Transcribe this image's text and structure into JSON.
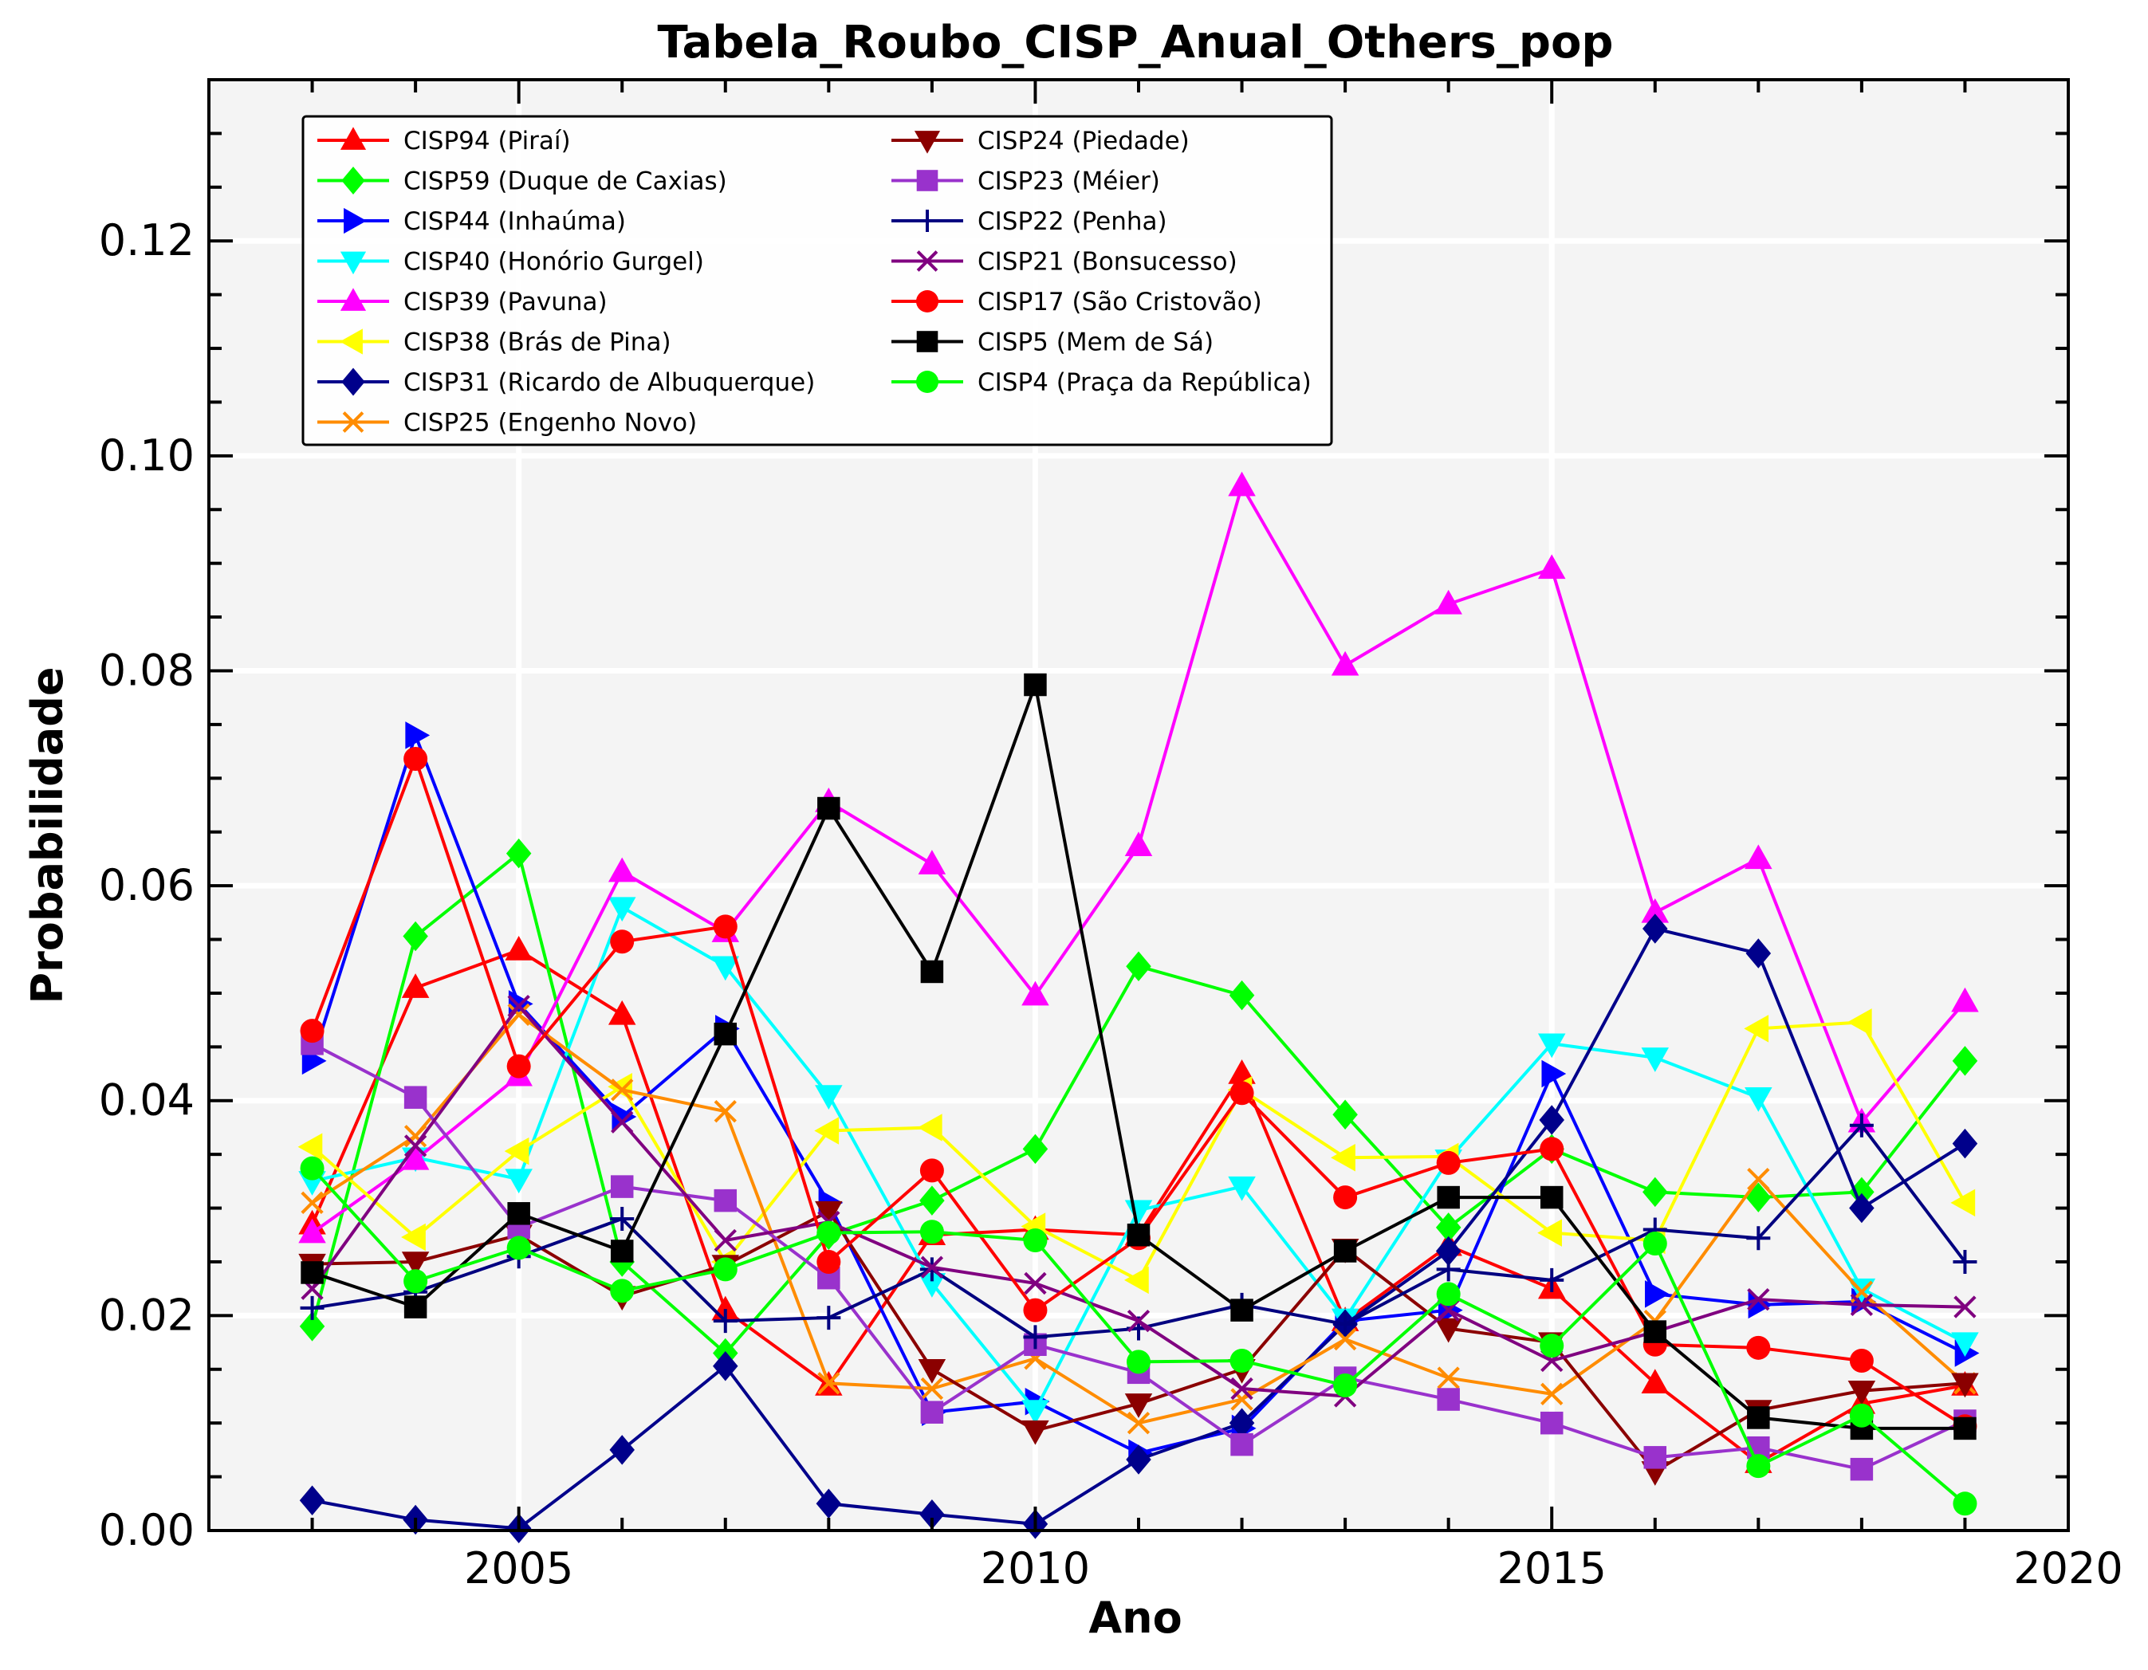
{
  "chart_data": {
    "type": "line",
    "title": "Tabela_Roubo_CISP_Anual_Others_pop",
    "xlabel": "Ano",
    "ylabel": "Probabilidade",
    "xlim": [
      2002,
      2020
    ],
    "ylim": [
      0,
      0.135
    ],
    "x_ticks": [
      2005,
      2010,
      2015,
      2020
    ],
    "x_tick_labels": [
      "2005",
      "2010",
      "2015",
      "2020"
    ],
    "y_ticks": [
      0,
      0.02,
      0.04,
      0.06,
      0.08,
      0.1,
      0.12
    ],
    "y_tick_labels": [
      "0.00",
      "0.02",
      "0.04",
      "0.06",
      "0.08",
      "0.10",
      "0.12"
    ],
    "grid": true,
    "background": "#f4f4f4",
    "legend_position": "top-left",
    "x": [
      2003,
      2004,
      2005,
      2006,
      2007,
      2008,
      2009,
      2010,
      2011,
      2012,
      2013,
      2014,
      2015,
      2016,
      2017,
      2018,
      2019
    ],
    "series": [
      {
        "name": "CISP94 (Piraí)",
        "color": "#ff0000",
        "marker": "triangle-up",
        "values": [
          0.0285,
          0.0505,
          0.054,
          0.048,
          0.0205,
          0.0135,
          0.0275,
          0.028,
          0.0275,
          0.0425,
          0.0195,
          0.0265,
          0.0225,
          0.0137,
          0.0063,
          0.0118,
          0.0135
        ]
      },
      {
        "name": "CISP59 (Duque de Caxias)",
        "color": "#00ff00",
        "marker": "diamond",
        "values": [
          0.019,
          0.0553,
          0.063,
          0.025,
          0.0165,
          0.0275,
          0.0307,
          0.0355,
          0.0525,
          0.0498,
          0.0387,
          0.0282,
          0.0355,
          0.0315,
          0.031,
          0.0315,
          0.0437
        ]
      },
      {
        "name": "CISP44 (Inhaúma)",
        "color": "#0000ff",
        "marker": "triangle-right",
        "values": [
          0.0437,
          0.074,
          0.049,
          0.0385,
          0.0467,
          0.0305,
          0.011,
          0.012,
          0.0072,
          0.0095,
          0.0195,
          0.0205,
          0.0425,
          0.022,
          0.021,
          0.0213,
          0.0165
        ]
      },
      {
        "name": "CISP40 (Honório Gurgel)",
        "color": "#00ffff",
        "marker": "triangle-down",
        "values": [
          0.0325,
          0.0347,
          0.0327,
          0.058,
          0.0525,
          0.0405,
          0.023,
          0.0112,
          0.0298,
          0.032,
          0.0197,
          0.0345,
          0.0453,
          0.044,
          0.0403,
          0.0225,
          0.0175
        ]
      },
      {
        "name": "CISP39 (Pavuna)",
        "color": "#ff00ff",
        "marker": "triangle-up",
        "values": [
          0.0277,
          0.0345,
          0.0423,
          0.0613,
          0.0557,
          0.0678,
          0.062,
          0.0498,
          0.0637,
          0.0972,
          0.0805,
          0.0862,
          0.0895,
          0.0575,
          0.0625,
          0.038,
          0.0492
        ]
      },
      {
        "name": "CISP38 (Brás de Pina)",
        "color": "#ffff00",
        "marker": "triangle-left",
        "values": [
          0.0357,
          0.0273,
          0.0353,
          0.0413,
          0.025,
          0.0372,
          0.0375,
          0.0283,
          0.0233,
          0.041,
          0.0347,
          0.0348,
          0.0277,
          0.027,
          0.0467,
          0.0473,
          0.0305
        ]
      },
      {
        "name": "CISP31 (Ricardo de Albuquerque)",
        "color": "#00008b",
        "marker": "diamond",
        "values": [
          0.0028,
          0.001,
          0.0002,
          0.0075,
          0.0153,
          0.0025,
          0.0015,
          0.0006,
          0.0066,
          0.01,
          0.0192,
          0.026,
          0.0382,
          0.056,
          0.0537,
          0.03,
          0.036
        ]
      },
      {
        "name": "CISP25 (Engenho Novo)",
        "color": "#ff8c00",
        "marker": "x",
        "values": [
          0.0305,
          0.0367,
          0.048,
          0.041,
          0.039,
          0.0137,
          0.0132,
          0.016,
          0.01,
          0.0122,
          0.0178,
          0.0142,
          0.0127,
          0.0195,
          0.0327,
          0.0222,
          0.0137
        ]
      },
      {
        "name": "CISP24 (Piedade)",
        "color": "#8b0000",
        "marker": "triangle-down",
        "values": [
          0.0248,
          0.025,
          0.0275,
          0.0218,
          0.0247,
          0.0297,
          0.015,
          0.0093,
          0.0118,
          0.015,
          0.0262,
          0.0188,
          0.0175,
          0.0055,
          0.0112,
          0.013,
          0.0137
        ]
      },
      {
        "name": "CISP23 (Méier)",
        "color": "#9932cc",
        "marker": "square",
        "values": [
          0.0453,
          0.0403,
          0.0282,
          0.032,
          0.0307,
          0.0235,
          0.011,
          0.0173,
          0.0147,
          0.008,
          0.0142,
          0.0122,
          0.01,
          0.0068,
          0.0077,
          0.0057,
          0.0102
        ]
      },
      {
        "name": "CISP22 (Penha)",
        "color": "#000080",
        "marker": "plus",
        "values": [
          0.0207,
          0.0222,
          0.0255,
          0.029,
          0.0195,
          0.0198,
          0.0243,
          0.018,
          0.0188,
          0.021,
          0.0192,
          0.0243,
          0.0233,
          0.028,
          0.0272,
          0.0377,
          0.025
        ]
      },
      {
        "name": "CISP21 (Bonsucesso)",
        "color": "#800080",
        "marker": "x",
        "values": [
          0.0225,
          0.0358,
          0.0488,
          0.038,
          0.027,
          0.0287,
          0.0245,
          0.023,
          0.0195,
          0.0132,
          0.0125,
          0.0205,
          0.0158,
          0.0185,
          0.0215,
          0.021,
          0.0208
        ]
      },
      {
        "name": "CISP17 (São Cristovão)",
        "color": "#ff0000",
        "marker": "circle",
        "values": [
          0.0465,
          0.0718,
          0.0432,
          0.0548,
          0.0562,
          0.025,
          0.0335,
          0.0205,
          0.0272,
          0.0407,
          0.031,
          0.0342,
          0.0355,
          0.0173,
          0.017,
          0.0158,
          0.0097
        ]
      },
      {
        "name": "CISP5 (Mem de Sá)",
        "color": "#000000",
        "marker": "square",
        "values": [
          0.024,
          0.0208,
          0.0295,
          0.026,
          0.0462,
          0.0672,
          0.052,
          0.0787,
          0.0275,
          0.0205,
          0.026,
          0.031,
          0.031,
          0.0185,
          0.0105,
          0.0095,
          0.0095
        ]
      },
      {
        "name": "CISP4 (Praça da República)",
        "color": "#00ff00",
        "marker": "circle",
        "values": [
          0.0337,
          0.0232,
          0.0263,
          0.0223,
          0.0243,
          0.0277,
          0.0278,
          0.027,
          0.0157,
          0.0158,
          0.0135,
          0.022,
          0.0172,
          0.0267,
          0.006,
          0.0107,
          0.0025
        ]
      }
    ]
  }
}
